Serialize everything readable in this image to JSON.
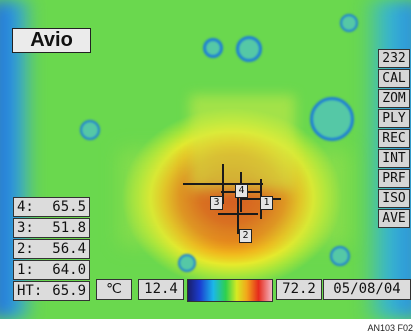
{
  "brand": {
    "logo_text": "Avio"
  },
  "side_menu": [
    {
      "label": "232"
    },
    {
      "label": "CAL"
    },
    {
      "label": "ZOM"
    },
    {
      "label": "PLY"
    },
    {
      "label": "REC"
    },
    {
      "label": "INT"
    },
    {
      "label": "PRF"
    },
    {
      "label": "ISO"
    },
    {
      "label": "AVE"
    }
  ],
  "readouts": [
    {
      "key": "4:",
      "value": "65.5"
    },
    {
      "key": "3:",
      "value": "51.8"
    },
    {
      "key": "2:",
      "value": "56.4"
    },
    {
      "key": "1:",
      "value": "64.0"
    },
    {
      "key": "HT:",
      "value": "65.9"
    }
  ],
  "markers": [
    {
      "label": "4"
    },
    {
      "label": "1"
    },
    {
      "label": "3"
    },
    {
      "label": "2"
    }
  ],
  "bottom_bar": {
    "unit_symbol": "℃",
    "scale_min": "12.4",
    "scale_max": "72.2",
    "date": "05/08/04"
  },
  "figure_caption": "AN103 F02"
}
